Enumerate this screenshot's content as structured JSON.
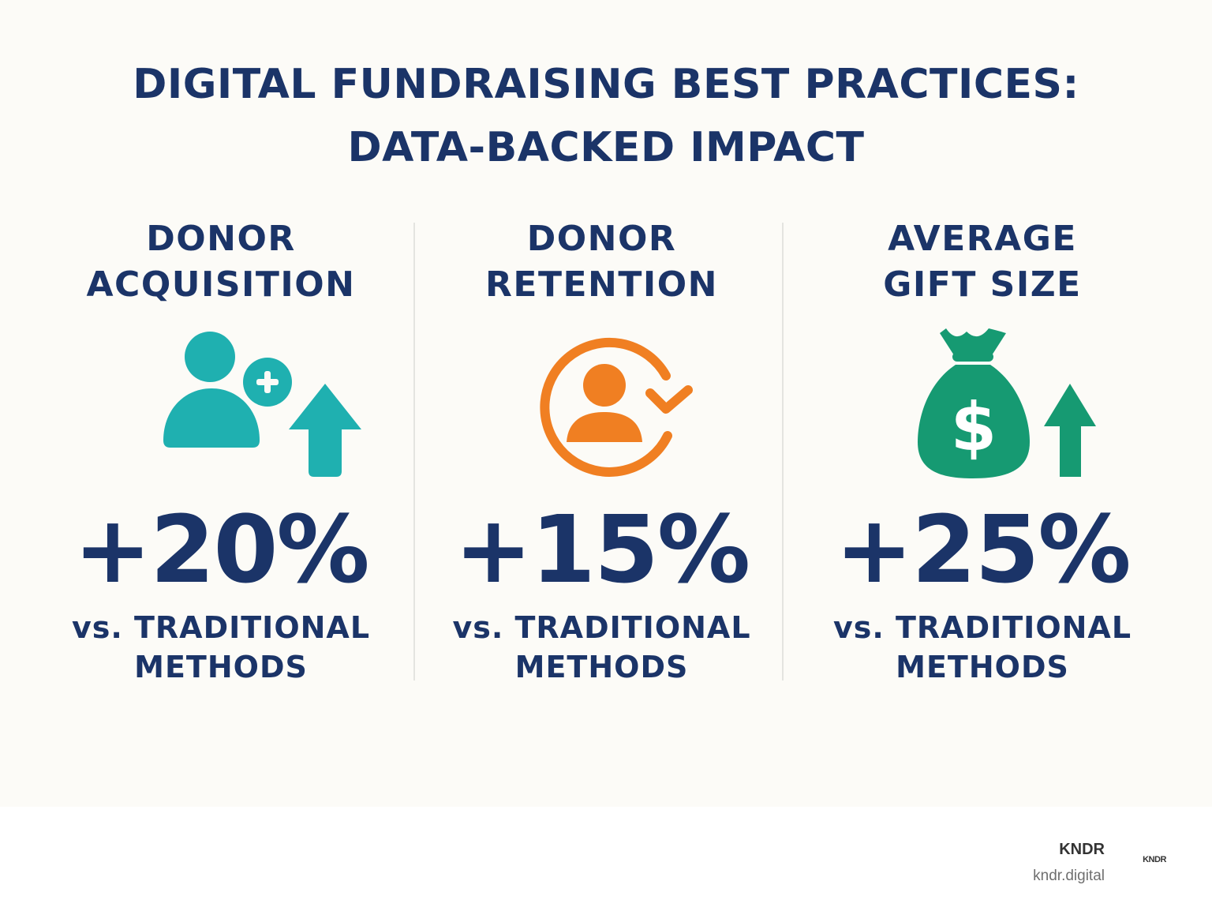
{
  "title": {
    "line1": "DIGITAL FUNDRAISING BEST PRACTICES:",
    "line2": "DATA-BACKED IMPACT"
  },
  "colors": {
    "navy": "#1b3468",
    "teal": "#1fb0b0",
    "orange": "#f07f22",
    "green": "#169a72",
    "background": "#fcfbf7"
  },
  "metrics": [
    {
      "heading_line1": "DONOR",
      "heading_line2": "ACQUISITION",
      "icon": "add-user-arrow-up-icon",
      "value": "+20%",
      "caption_line1": "vs. TRADITIONAL",
      "caption_line2": "METHODS"
    },
    {
      "heading_line1": "DONOR",
      "heading_line2": "RETENTION",
      "icon": "user-cycle-icon",
      "value": "+15%",
      "caption_line1": "vs. TRADITIONAL",
      "caption_line2": "METHODS"
    },
    {
      "heading_line1": "AVERAGE",
      "heading_line2": "GIFT SIZE",
      "icon": "money-bag-arrow-up-icon",
      "value": "+25%",
      "caption_line1": "vs. TRADITIONAL",
      "caption_line2": "METHODS"
    }
  ],
  "footer": {
    "brand": "KNDR",
    "url": "kndr.digital",
    "logo_text": "KNDR"
  }
}
